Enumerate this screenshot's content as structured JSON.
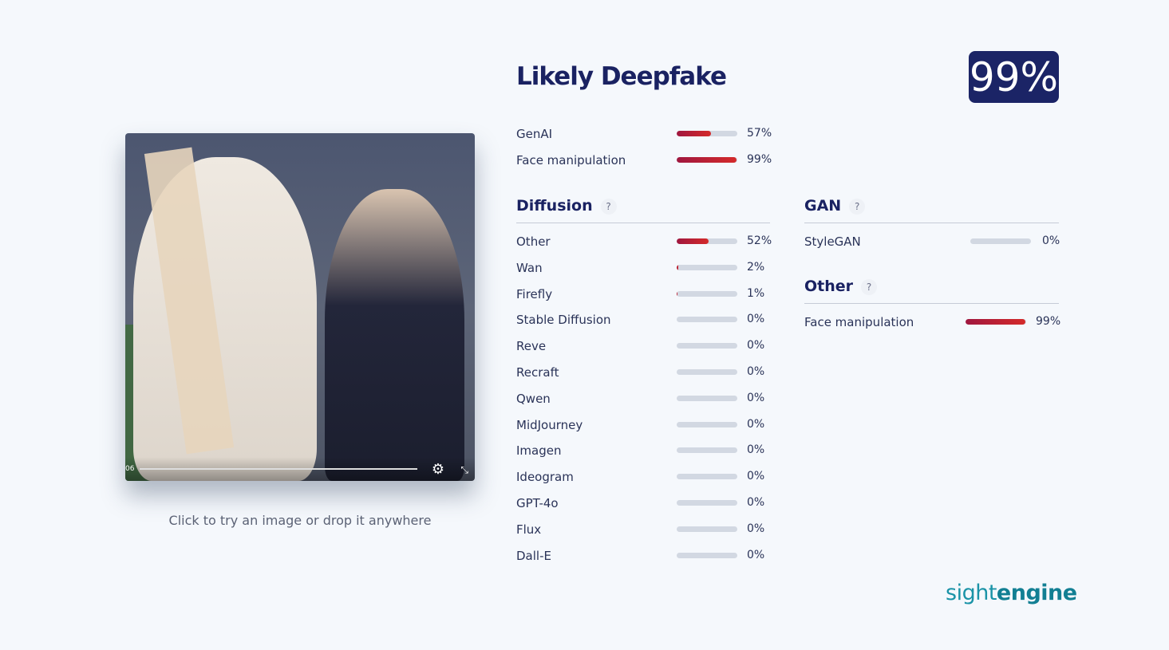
{
  "media": {
    "time": "06",
    "caption": "Click to try an image or drop it anywhere"
  },
  "result": {
    "title": "Likely Deepfake",
    "score": "99%"
  },
  "summary": [
    {
      "label": "GenAI",
      "value": 57,
      "pct": "57%"
    },
    {
      "label": "Face manipulation",
      "value": 99,
      "pct": "99%"
    }
  ],
  "diffusion": {
    "title": "Diffusion",
    "help": "?",
    "items": [
      {
        "label": "Other",
        "value": 52,
        "pct": "52%"
      },
      {
        "label": "Wan",
        "value": 2,
        "pct": "2%"
      },
      {
        "label": "Firefly",
        "value": 1,
        "pct": "1%"
      },
      {
        "label": "Stable Diffusion",
        "value": 0,
        "pct": "0%"
      },
      {
        "label": "Reve",
        "value": 0,
        "pct": "0%"
      },
      {
        "label": "Recraft",
        "value": 0,
        "pct": "0%"
      },
      {
        "label": "Qwen",
        "value": 0,
        "pct": "0%"
      },
      {
        "label": "MidJourney",
        "value": 0,
        "pct": "0%"
      },
      {
        "label": "Imagen",
        "value": 0,
        "pct": "0%"
      },
      {
        "label": "Ideogram",
        "value": 0,
        "pct": "0%"
      },
      {
        "label": "GPT-4o",
        "value": 0,
        "pct": "0%"
      },
      {
        "label": "Flux",
        "value": 0,
        "pct": "0%"
      },
      {
        "label": "Dall-E",
        "value": 0,
        "pct": "0%"
      }
    ]
  },
  "gan": {
    "title": "GAN",
    "help": "?",
    "items": [
      {
        "label": "StyleGAN",
        "value": 0,
        "pct": "0%"
      }
    ]
  },
  "other": {
    "title": "Other",
    "help": "?",
    "items": [
      {
        "label": "Face manipulation",
        "value": 99,
        "pct": "99%"
      }
    ]
  },
  "brand": {
    "light": "sight",
    "bold": "engine"
  },
  "colors": {
    "accent": "#1b2466",
    "bar_start": "#a0173f",
    "bar_end": "#d42a2a",
    "track": "#d2d8e2",
    "brand": "#1a93a7"
  }
}
